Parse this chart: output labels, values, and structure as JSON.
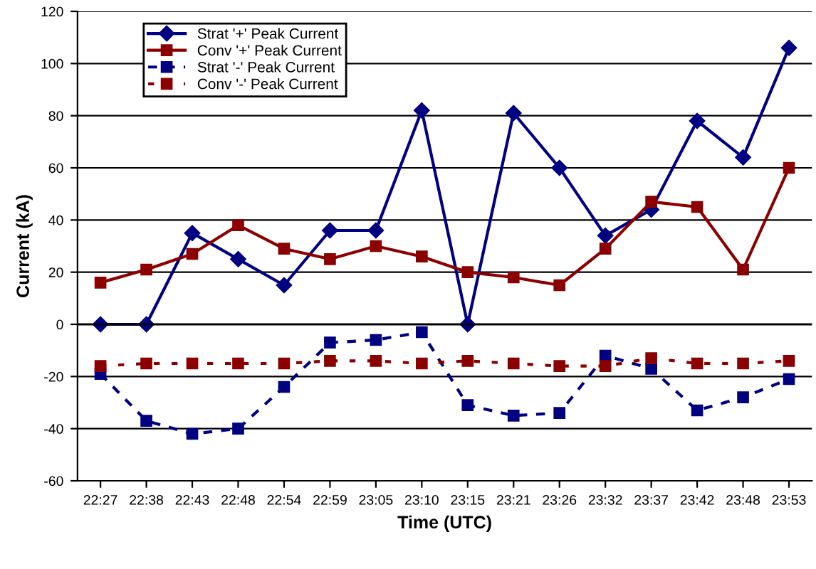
{
  "chart_data": {
    "type": "line",
    "xlabel": "Time (UTC)",
    "ylabel": "Current (kA)",
    "categories": [
      "22:27",
      "22:38",
      "22:43",
      "22:48",
      "22:54",
      "22:59",
      "23:05",
      "23:10",
      "23:15",
      "23:21",
      "23:26",
      "23:32",
      "23:37",
      "23:42",
      "23:48",
      "23:53"
    ],
    "series": [
      {
        "name": "Strat '+' Peak Current",
        "color": "#000080",
        "marker": "diamond",
        "line_style": "solid",
        "values": [
          0,
          0,
          35,
          25,
          15,
          36,
          36,
          82,
          0,
          81,
          60,
          34,
          44,
          78,
          64,
          106
        ]
      },
      {
        "name": "Conv '+' Peak Current",
        "color": "#8b0000",
        "marker": "square",
        "line_style": "solid",
        "values": [
          16,
          21,
          27,
          38,
          29,
          25,
          30,
          26,
          20,
          18,
          15,
          29,
          47,
          45,
          21,
          60
        ]
      },
      {
        "name": "Strat '-' Peak Current",
        "color": "#000080",
        "marker": "square",
        "line_style": "dashed",
        "values": [
          -19,
          -37,
          -42,
          -40,
          -24,
          -7,
          -6,
          -3,
          -31,
          -35,
          -34,
          -12,
          -17,
          -33,
          -28,
          -21
        ]
      },
      {
        "name": "Conv '-' Peak Current",
        "color": "#8b0000",
        "marker": "square",
        "line_style": "dotted",
        "values": [
          -16,
          -15,
          -15,
          -15,
          -15,
          -14,
          -14,
          -15,
          -14,
          -15,
          -16,
          -16,
          -13,
          -15,
          -15,
          -14
        ]
      }
    ],
    "ylim": [
      -60,
      120
    ],
    "yticks": [
      -60,
      -40,
      -20,
      0,
      20,
      40,
      60,
      80,
      100,
      120
    ],
    "grid": "y",
    "legend": "top left"
  }
}
